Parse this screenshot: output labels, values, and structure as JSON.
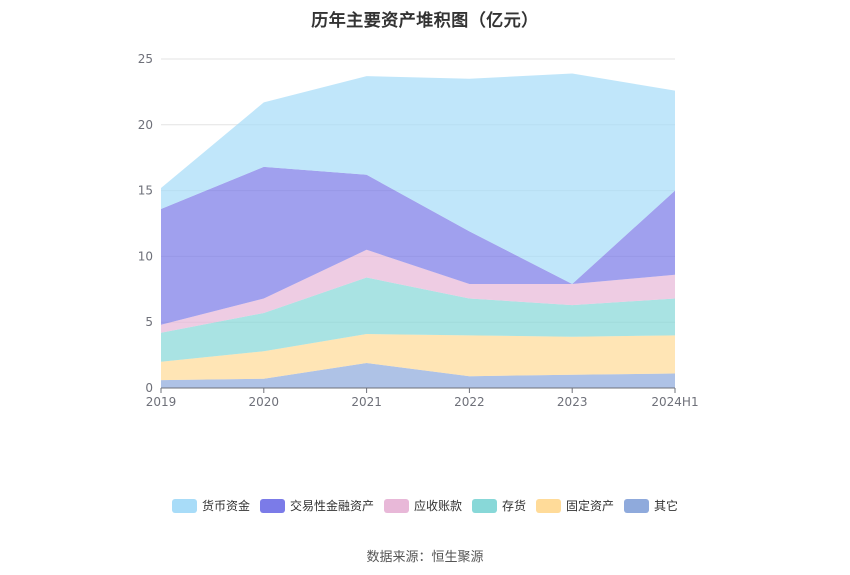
{
  "source_note": "数据来源：恒生聚源",
  "chart_data": {
    "type": "area",
    "stacked": true,
    "title": "历年主要资产堆积图（亿元）",
    "xlabel": "",
    "ylabel": "",
    "categories": [
      "2019",
      "2020",
      "2021",
      "2022",
      "2023",
      "2024H1"
    ],
    "ylim": [
      0,
      25
    ],
    "yticks": [
      0,
      5,
      10,
      15,
      20,
      25
    ],
    "grid": true,
    "legend_position": "bottom",
    "series": [
      {
        "name": "其它",
        "color": "#8faadc",
        "values": [
          0.6,
          0.7,
          1.9,
          0.9,
          1.0,
          1.1
        ]
      },
      {
        "name": "固定资产",
        "color": "#ffdb99",
        "values": [
          1.4,
          2.1,
          2.2,
          3.1,
          2.9,
          2.9
        ]
      },
      {
        "name": "存货",
        "color": "#88d8d8",
        "values": [
          2.2,
          2.9,
          4.3,
          2.8,
          2.4,
          2.8
        ]
      },
      {
        "name": "应收账款",
        "color": "#e8b8d8",
        "values": [
          0.6,
          1.1,
          2.1,
          1.1,
          1.6,
          1.8
        ]
      },
      {
        "name": "交易性金融资产",
        "color": "#7b7be8",
        "values": [
          8.8,
          10.0,
          5.7,
          4.0,
          0.0,
          6.4
        ]
      },
      {
        "name": "货币资金",
        "color": "#a8dcf8",
        "values": [
          1.6,
          4.9,
          7.5,
          11.6,
          16.0,
          7.6
        ]
      }
    ]
  }
}
